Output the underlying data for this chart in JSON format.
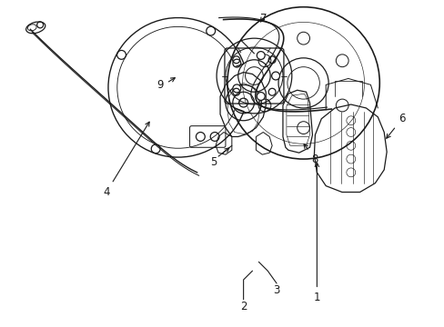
{
  "background_color": "#ffffff",
  "line_color": "#1a1a1a",
  "figsize": [
    4.89,
    3.6
  ],
  "dpi": 100,
  "label_fontsize": 8.5
}
